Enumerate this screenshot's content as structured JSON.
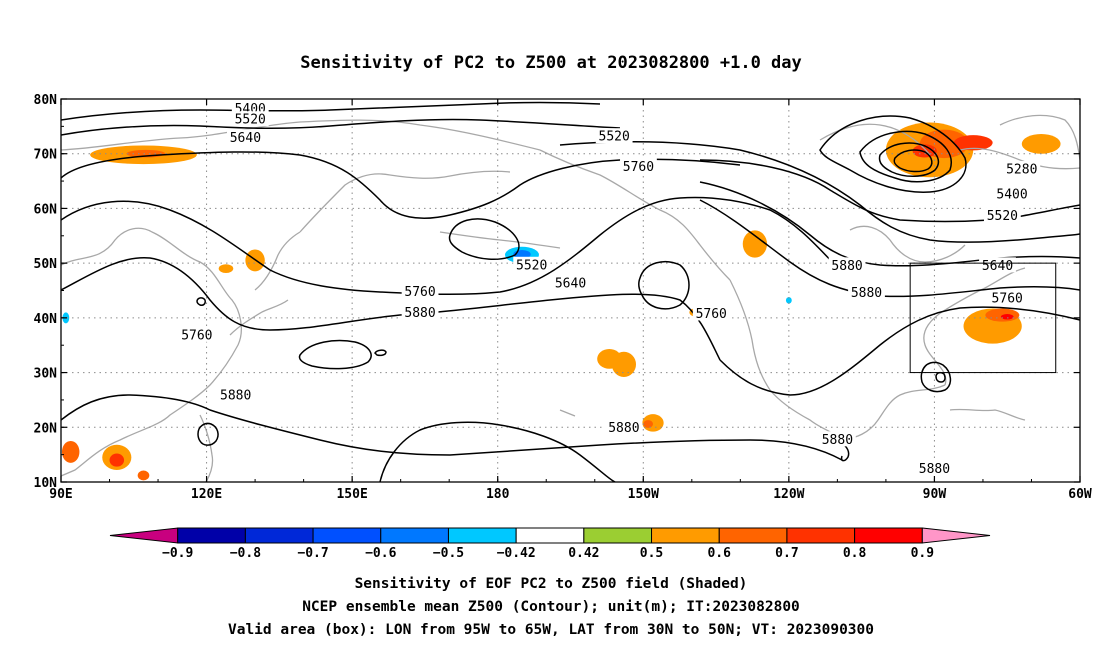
{
  "chart_data": {
    "type": "contour-map",
    "title": "Sensitivity of PC2 to Z500 at 2023082800 +1.0 day",
    "lon_range": [
      90,
      300
    ],
    "lat_range": [
      10,
      80
    ],
    "x_ticks": [
      {
        "lon": 90,
        "label": "90E"
      },
      {
        "lon": 120,
        "label": "120E"
      },
      {
        "lon": 150,
        "label": "150E"
      },
      {
        "lon": 180,
        "label": "180"
      },
      {
        "lon": 210,
        "label": "150W"
      },
      {
        "lon": 240,
        "label": "120W"
      },
      {
        "lon": 270,
        "label": "90W"
      },
      {
        "lon": 300,
        "label": "60W"
      }
    ],
    "y_ticks": [
      {
        "lat": 80,
        "label": "80N"
      },
      {
        "lat": 70,
        "label": "70N"
      },
      {
        "lat": 60,
        "label": "60N"
      },
      {
        "lat": 50,
        "label": "50N"
      },
      {
        "lat": 40,
        "label": "40N"
      },
      {
        "lat": 30,
        "label": "30N"
      },
      {
        "lat": 20,
        "label": "20N"
      },
      {
        "lat": 10,
        "label": "10N"
      }
    ],
    "grid": "dotted",
    "contour_labels": [
      {
        "text": "5400",
        "lon": 129,
        "lat": 78.3
      },
      {
        "text": "5520",
        "lon": 129,
        "lat": 76.3
      },
      {
        "text": "5640",
        "lon": 128,
        "lat": 73.0
      },
      {
        "text": "5520",
        "lon": 204,
        "lat": 73.2
      },
      {
        "text": "5760",
        "lon": 209,
        "lat": 67.7
      },
      {
        "text": "5280",
        "lon": 288,
        "lat": 67.2
      },
      {
        "text": "5400",
        "lon": 286,
        "lat": 62.6
      },
      {
        "text": "5520",
        "lon": 284,
        "lat": 58.7
      },
      {
        "text": "5640",
        "lon": 283,
        "lat": 49.6
      },
      {
        "text": "5880",
        "lon": 252,
        "lat": 49.6
      },
      {
        "text": "5880",
        "lon": 256,
        "lat": 44.6
      },
      {
        "text": "5760",
        "lon": 285,
        "lat": 43.6
      },
      {
        "text": "5520",
        "lon": 187,
        "lat": 49.7
      },
      {
        "text": "5640",
        "lon": 195,
        "lat": 46.4
      },
      {
        "text": "5760",
        "lon": 164,
        "lat": 44.8
      },
      {
        "text": "5880",
        "lon": 164,
        "lat": 41.0
      },
      {
        "text": "5760",
        "lon": 224,
        "lat": 40.8
      },
      {
        "text": "5760",
        "lon": 118,
        "lat": 36.9
      },
      {
        "text": "5880",
        "lon": 126,
        "lat": 25.9
      },
      {
        "text": "5880",
        "lon": 206,
        "lat": 20.0
      },
      {
        "text": "5880",
        "lon": 250,
        "lat": 17.8
      },
      {
        "text": "5880",
        "lon": 270,
        "lat": 12.5
      }
    ],
    "valid_box": {
      "lon": [
        265,
        295
      ],
      "lat": [
        30,
        50
      ]
    },
    "shaded_regions": [
      {
        "lon": 107,
        "lat": 69.8,
        "rx": 11,
        "ry": 1.7,
        "value": 0.5
      },
      {
        "lon": 107.5,
        "lat": 70.0,
        "rx": 4,
        "ry": 0.7,
        "value": 0.6
      },
      {
        "lon": 233,
        "lat": 53.5,
        "rx": 2.5,
        "ry": 2.5,
        "value": 0.5
      },
      {
        "lon": 269,
        "lat": 70.7,
        "rx": 9,
        "ry": 5,
        "value": 0.5
      },
      {
        "lon": 272,
        "lat": 71.8,
        "rx": 5,
        "ry": 2.6,
        "value": 0.6
      },
      {
        "lon": 268,
        "lat": 70.5,
        "rx": 2.5,
        "ry": 1.2,
        "value": 0.7
      },
      {
        "lon": 278,
        "lat": 72.0,
        "rx": 4,
        "ry": 1.4,
        "value": 0.7
      },
      {
        "lon": 292,
        "lat": 71.8,
        "rx": 4,
        "ry": 1.8,
        "value": 0.5
      },
      {
        "lon": 282,
        "lat": 38.5,
        "rx": 6,
        "ry": 3.2,
        "value": 0.5
      },
      {
        "lon": 284,
        "lat": 40.5,
        "rx": 3.5,
        "ry": 1.2,
        "value": 0.6
      },
      {
        "lon": 285,
        "lat": 40.2,
        "rx": 1.3,
        "ry": 0.5,
        "value": 0.8
      },
      {
        "lon": 203,
        "lat": 32.5,
        "rx": 2.5,
        "ry": 1.8,
        "value": 0.5
      },
      {
        "lon": 206,
        "lat": 31.5,
        "rx": 2.5,
        "ry": 2.3,
        "value": 0.5
      },
      {
        "lon": 212,
        "lat": 20.8,
        "rx": 2.2,
        "ry": 1.6,
        "value": 0.5
      },
      {
        "lon": 211,
        "lat": 20.6,
        "rx": 1.0,
        "ry": 0.7,
        "value": 0.6
      },
      {
        "lon": 130,
        "lat": 50.5,
        "rx": 2.0,
        "ry": 2.0,
        "value": 0.5
      },
      {
        "lon": 124,
        "lat": 49.0,
        "rx": 1.5,
        "ry": 0.8,
        "value": 0.5
      },
      {
        "lon": 221,
        "lat": 41.0,
        "rx": 1.5,
        "ry": 0.8,
        "value": 0.5
      },
      {
        "lon": 185,
        "lat": 51.5,
        "rx": 3.5,
        "ry": 1.5,
        "value": -0.5
      },
      {
        "lon": 185,
        "lat": 51.6,
        "rx": 1.8,
        "ry": 0.8,
        "value": -0.6
      },
      {
        "lon": 92,
        "lat": 15.5,
        "rx": 1.8,
        "ry": 2.0,
        "value": 0.6
      },
      {
        "lon": 101.5,
        "lat": 14.5,
        "rx": 3.0,
        "ry": 2.3,
        "value": 0.5
      },
      {
        "lon": 101.5,
        "lat": 14.0,
        "rx": 1.5,
        "ry": 1.2,
        "value": 0.7
      },
      {
        "lon": 107,
        "lat": 11.2,
        "rx": 1.2,
        "ry": 0.9,
        "value": 0.6
      },
      {
        "lon": 91,
        "lat": 40,
        "rx": 0.7,
        "ry": 1.0,
        "value": -0.5
      },
      {
        "lon": 240,
        "lat": 43.2,
        "rx": 0.6,
        "ry": 0.6,
        "value": -0.5
      }
    ],
    "colorbar": {
      "colors": [
        "#c8007f",
        "#0000a8",
        "#0028d8",
        "#0050ff",
        "#0078ff",
        "#00c8ff",
        "#ffffff",
        "#9bce32",
        "#ff9b00",
        "#ff6400",
        "#ff3200",
        "#ff0000",
        "#ff96c8"
      ],
      "labels": [
        "-0.9",
        "-0.8",
        "-0.7",
        "-0.6",
        "-0.5",
        "-0.42",
        "0.42",
        "0.5",
        "0.6",
        "0.7",
        "0.8",
        "0.9"
      ]
    },
    "caption": [
      "Sensitivity of EOF PC2 to Z500 field (Shaded)",
      "NCEP ensemble mean Z500 (Contour); unit(m); IT:2023082800",
      "Valid area (box): LON from 95W to 65W, LAT from 30N to 50N; VT: 2023090300"
    ]
  }
}
